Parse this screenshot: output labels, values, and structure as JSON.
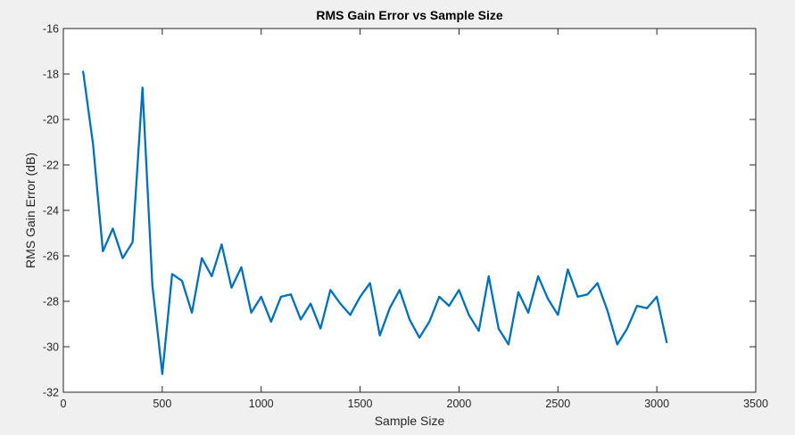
{
  "chart_data": {
    "type": "line",
    "title": "RMS Gain Error vs Sample Size",
    "xlabel": "Sample Size",
    "ylabel": "RMS Gain Error (dB)",
    "xlim": [
      0,
      3500
    ],
    "ylim": [
      -32,
      -16
    ],
    "xticks": [
      "0",
      "500",
      "1000",
      "1500",
      "2000",
      "2500",
      "3000",
      "3500"
    ],
    "yticks": [
      "-32",
      "-30",
      "-28",
      "-26",
      "-24",
      "-22",
      "-20",
      "-18",
      "-16"
    ],
    "grid": false,
    "line_color": "#0072BD",
    "series": [
      {
        "x": [
          100,
          150,
          200,
          250,
          300,
          350,
          400,
          450,
          500,
          550,
          600,
          650,
          700,
          750,
          800,
          850,
          900,
          950,
          1000,
          1050,
          1100,
          1150,
          1200,
          1250,
          1300,
          1350,
          1400,
          1450,
          1500,
          1550,
          1600,
          1650,
          1700,
          1750,
          1800,
          1850,
          1900,
          1950,
          2000,
          2050,
          2100,
          2150,
          2200,
          2250,
          2300,
          2350,
          2400,
          2450,
          2500,
          2550,
          2600,
          2650,
          2700,
          2750,
          2800,
          2850,
          2900,
          2950,
          3000,
          3050
        ],
        "y": [
          -17.9,
          -21.1,
          -25.8,
          -24.8,
          -26.1,
          -25.4,
          -18.6,
          -27.3,
          -31.2,
          -26.8,
          -27.1,
          -28.5,
          -26.1,
          -26.9,
          -25.5,
          -27.4,
          -26.5,
          -28.5,
          -27.8,
          -28.9,
          -27.8,
          -27.7,
          -28.8,
          -28.1,
          -29.2,
          -27.5,
          -28.1,
          -28.6,
          -27.8,
          -27.2,
          -29.5,
          -28.3,
          -27.5,
          -28.8,
          -29.6,
          -28.9,
          -27.8,
          -28.2,
          -27.5,
          -28.6,
          -29.3,
          -26.9,
          -29.2,
          -29.9,
          -27.6,
          -28.5,
          -26.9,
          -27.9,
          -28.6,
          -26.6,
          -27.8,
          -27.7,
          -27.2,
          -28.4,
          -29.9,
          -29.2,
          -28.2,
          -28.3,
          -27.8,
          -29.8
        ]
      }
    ]
  }
}
